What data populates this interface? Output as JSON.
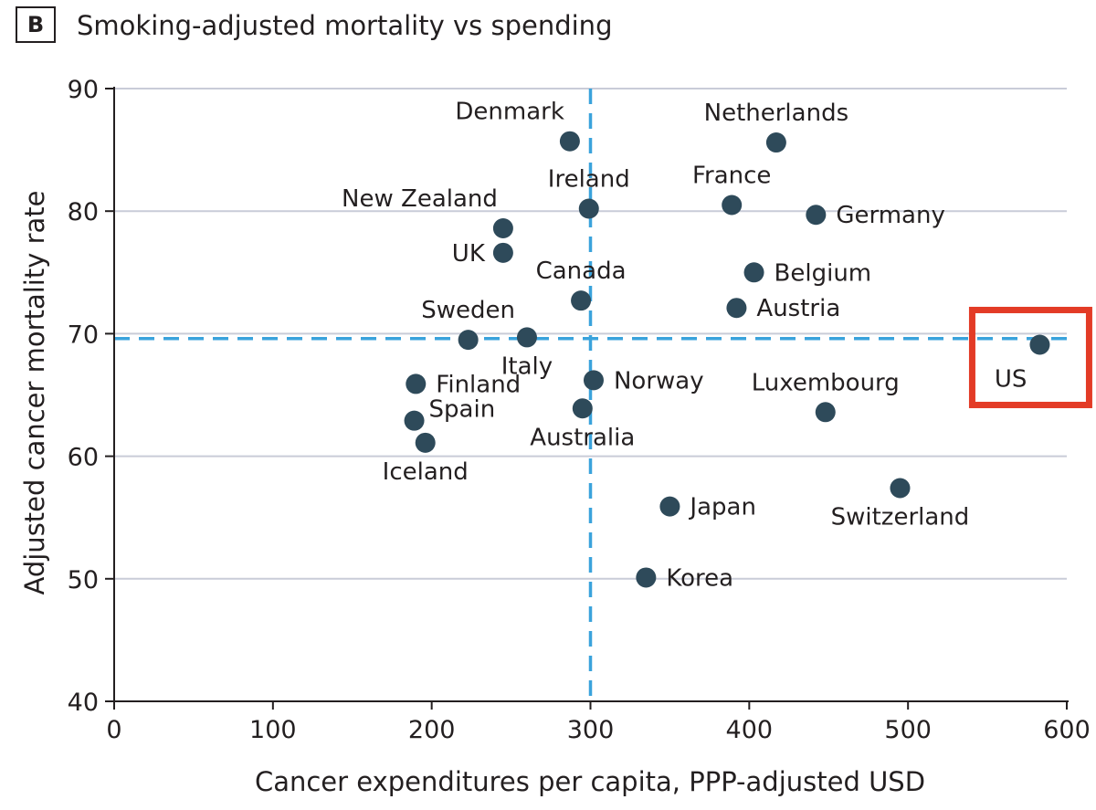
{
  "panel_label": "B",
  "chart_data": {
    "type": "scatter",
    "title": "Smoking-adjusted mortality vs spending",
    "xlabel": "Cancer expenditures per capita, PPP-adjusted USD",
    "ylabel": "Adjusted cancer mortality rate",
    "xlim": [
      0,
      600
    ],
    "ylim": [
      40,
      90
    ],
    "xticks": [
      0,
      100,
      200,
      300,
      400,
      500,
      600
    ],
    "yticks": [
      40,
      50,
      60,
      70,
      80,
      90
    ],
    "grid": "horizontal",
    "reference_lines": {
      "x": 300,
      "y": 69.6
    },
    "highlight": "US",
    "colors": {
      "point": "#2e4a5a",
      "reference": "#3aa3dc",
      "grid": "#c9ccd8",
      "highlight": "#e33b26",
      "axis": "#231f20"
    },
    "points": [
      {
        "label": "Denmark",
        "x": 287,
        "y": 85.7,
        "pos": "tl"
      },
      {
        "label": "Netherlands",
        "x": 417,
        "y": 85.6,
        "pos": "t"
      },
      {
        "label": "Ireland",
        "x": 299,
        "y": 80.2,
        "pos": "t"
      },
      {
        "label": "France",
        "x": 389,
        "y": 80.5,
        "pos": "t"
      },
      {
        "label": "Germany",
        "x": 442,
        "y": 79.7,
        "pos": "r"
      },
      {
        "label": "New Zealand",
        "x": 245,
        "y": 78.6,
        "pos": "tl"
      },
      {
        "label": "UK",
        "x": 245,
        "y": 76.6,
        "pos": "l"
      },
      {
        "label": "Belgium",
        "x": 403,
        "y": 75.0,
        "pos": "r"
      },
      {
        "label": "Canada",
        "x": 294,
        "y": 72.7,
        "pos": "t"
      },
      {
        "label": "Austria",
        "x": 392,
        "y": 72.1,
        "pos": "r"
      },
      {
        "label": "Sweden",
        "x": 223,
        "y": 69.5,
        "pos": "t"
      },
      {
        "label": "Italy",
        "x": 260,
        "y": 69.7,
        "pos": "b"
      },
      {
        "label": "US",
        "x": 583,
        "y": 69.1,
        "pos": "bl"
      },
      {
        "label": "Finland",
        "x": 190,
        "y": 65.9,
        "pos": "r"
      },
      {
        "label": "Norway",
        "x": 302,
        "y": 66.2,
        "pos": "r"
      },
      {
        "label": "Australia",
        "x": 295,
        "y": 63.9,
        "pos": "b"
      },
      {
        "label": "Luxembourg",
        "x": 448,
        "y": 63.6,
        "pos": "t"
      },
      {
        "label": "Spain",
        "x": 189,
        "y": 62.9,
        "pos": "tr"
      },
      {
        "label": "Iceland",
        "x": 196,
        "y": 61.1,
        "pos": "b"
      },
      {
        "label": "Switzerland",
        "x": 495,
        "y": 57.4,
        "pos": "b"
      },
      {
        "label": "Japan",
        "x": 350,
        "y": 55.9,
        "pos": "r"
      },
      {
        "label": "Korea",
        "x": 335,
        "y": 50.1,
        "pos": "r"
      }
    ]
  }
}
